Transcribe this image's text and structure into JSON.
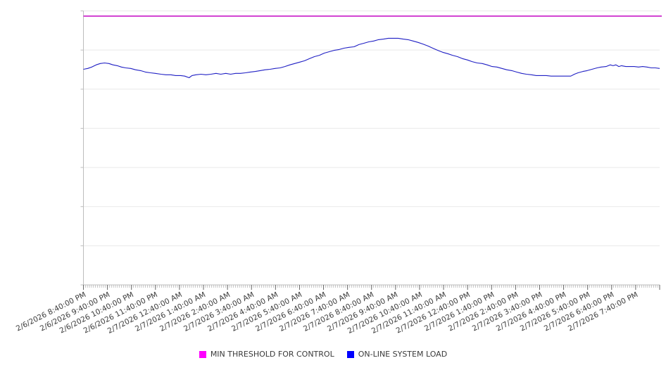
{
  "chart_data": {
    "type": "line",
    "title": "",
    "xlabel": "",
    "ylabel": "",
    "x_axis": {
      "range_hours": 24,
      "minor_tick_minutes": 5,
      "label_rotation_deg": -27,
      "categories": [
        "2/6/2026 8:40:00 PM",
        "2/6/2026 9:40:00 PM",
        "2/6/2026 10:40:00 PM",
        "2/6/2026 11:40:00 PM",
        "2/7/2026 12:40:00 AM",
        "2/7/2026 1:40:00 AM",
        "2/7/2026 2:40:00 AM",
        "2/7/2026 3:40:00 AM",
        "2/7/2026 4:40:00 AM",
        "2/7/2026 5:40:00 AM",
        "2/7/2026 6:40:00 AM",
        "2/7/2026 7:40:00 AM",
        "2/7/2026 8:40:00 AM",
        "2/7/2026 9:40:00 AM",
        "2/7/2026 10:40:00 AM",
        "2/7/2026 11:40:00 AM",
        "2/7/2026 12:40:00 PM",
        "2/7/2026 1:40:00 PM",
        "2/7/2026 2:40:00 PM",
        "2/7/2026 3:40:00 PM",
        "2/7/2026 4:40:00 PM",
        "2/7/2026 5:40:00 PM",
        "2/7/2026 6:40:00 PM",
        "2/7/2026 7:40:00 PM"
      ]
    },
    "y_axis": {
      "min": 0,
      "max": 100,
      "gridline_count": 8,
      "labels_visible": false,
      "grid_on": true
    },
    "legend_position": "bottom-center",
    "series": [
      {
        "name": "MIN THRESHOLD FOR CONTROL",
        "type": "hline",
        "color": "#cb29cb",
        "stroke_width": 1.7,
        "value": 98.1
      },
      {
        "name": "ON-LINE SYSTEM LOAD",
        "type": "line",
        "color": "#1f1fc4",
        "stroke_width": 1.1,
        "points": [
          [
            0,
            78.7
          ],
          [
            0.18,
            79
          ],
          [
            0.35,
            79.5
          ],
          [
            0.53,
            80.3
          ],
          [
            0.7,
            80.8
          ],
          [
            0.88,
            81
          ],
          [
            1.06,
            80.8
          ],
          [
            1.23,
            80.3
          ],
          [
            1.41,
            80
          ],
          [
            1.58,
            79.5
          ],
          [
            1.76,
            79.2
          ],
          [
            1.97,
            79
          ],
          [
            2.17,
            78.5
          ],
          [
            2.38,
            78.2
          ],
          [
            2.58,
            77.7
          ],
          [
            2.79,
            77.4
          ],
          [
            2.99,
            77.2
          ],
          [
            3.23,
            76.9
          ],
          [
            3.43,
            76.7
          ],
          [
            3.64,
            76.7
          ],
          [
            3.84,
            76.4
          ],
          [
            4.05,
            76.4
          ],
          [
            4.22,
            76.2
          ],
          [
            4.4,
            75.6
          ],
          [
            4.52,
            76.4
          ],
          [
            4.69,
            76.7
          ],
          [
            4.9,
            76.9
          ],
          [
            5.1,
            76.7
          ],
          [
            5.31,
            76.9
          ],
          [
            5.52,
            77.2
          ],
          [
            5.72,
            76.9
          ],
          [
            5.93,
            77.2
          ],
          [
            6.13,
            76.9
          ],
          [
            6.34,
            77.2
          ],
          [
            6.54,
            77.2
          ],
          [
            6.75,
            77.4
          ],
          [
            6.95,
            77.7
          ],
          [
            7.16,
            77.9
          ],
          [
            7.36,
            78.2
          ],
          [
            7.57,
            78.5
          ],
          [
            7.77,
            78.7
          ],
          [
            7.98,
            79
          ],
          [
            8.19,
            79.2
          ],
          [
            8.39,
            79.7
          ],
          [
            8.6,
            80.3
          ],
          [
            8.8,
            80.8
          ],
          [
            9.01,
            81.3
          ],
          [
            9.21,
            81.8
          ],
          [
            9.42,
            82.6
          ],
          [
            9.62,
            83.3
          ],
          [
            9.83,
            83.8
          ],
          [
            10.03,
            84.6
          ],
          [
            10.24,
            85.1
          ],
          [
            10.44,
            85.6
          ],
          [
            10.65,
            85.9
          ],
          [
            10.85,
            86.4
          ],
          [
            11.06,
            86.7
          ],
          [
            11.27,
            86.9
          ],
          [
            11.47,
            87.7
          ],
          [
            11.68,
            88.2
          ],
          [
            11.88,
            88.7
          ],
          [
            12.09,
            89
          ],
          [
            12.29,
            89.5
          ],
          [
            12.5,
            89.7
          ],
          [
            12.7,
            90
          ],
          [
            12.91,
            90
          ],
          [
            13.11,
            90
          ],
          [
            13.32,
            89.7
          ],
          [
            13.52,
            89.5
          ],
          [
            13.73,
            89
          ],
          [
            13.94,
            88.5
          ],
          [
            14.14,
            87.9
          ],
          [
            14.35,
            87.2
          ],
          [
            14.55,
            86.4
          ],
          [
            14.76,
            85.6
          ],
          [
            14.96,
            84.9
          ],
          [
            15.17,
            84.4
          ],
          [
            15.37,
            83.8
          ],
          [
            15.58,
            83.3
          ],
          [
            15.78,
            82.6
          ],
          [
            15.99,
            82.1
          ],
          [
            16.19,
            81.5
          ],
          [
            16.4,
            81
          ],
          [
            16.61,
            80.8
          ],
          [
            16.81,
            80.3
          ],
          [
            17.02,
            79.7
          ],
          [
            17.22,
            79.5
          ],
          [
            17.43,
            79
          ],
          [
            17.63,
            78.5
          ],
          [
            17.84,
            78.2
          ],
          [
            18.04,
            77.7
          ],
          [
            18.25,
            77.2
          ],
          [
            18.45,
            76.9
          ],
          [
            18.66,
            76.7
          ],
          [
            18.86,
            76.4
          ],
          [
            19.07,
            76.4
          ],
          [
            19.28,
            76.4
          ],
          [
            19.48,
            76.2
          ],
          [
            19.69,
            76.2
          ],
          [
            19.89,
            76.2
          ],
          [
            20.1,
            76.2
          ],
          [
            20.3,
            76.2
          ],
          [
            20.45,
            76.9
          ],
          [
            20.6,
            77.4
          ],
          [
            20.8,
            77.9
          ],
          [
            20.98,
            78.2
          ],
          [
            21.18,
            78.7
          ],
          [
            21.39,
            79.2
          ],
          [
            21.56,
            79.5
          ],
          [
            21.77,
            79.7
          ],
          [
            21.94,
            80.3
          ],
          [
            22.06,
            80
          ],
          [
            22.18,
            80.3
          ],
          [
            22.3,
            79.7
          ],
          [
            22.41,
            80
          ],
          [
            22.59,
            79.7
          ],
          [
            22.77,
            79.7
          ],
          [
            22.94,
            79.7
          ],
          [
            23.12,
            79.5
          ],
          [
            23.29,
            79.7
          ],
          [
            23.47,
            79.5
          ],
          [
            23.65,
            79.2
          ],
          [
            23.82,
            79.2
          ],
          [
            24,
            79
          ]
        ]
      }
    ]
  },
  "legend": {
    "items": [
      {
        "label": "MIN THRESHOLD FOR CONTROL",
        "color": "#ff00ff"
      },
      {
        "label": "ON-LINE SYSTEM LOAD",
        "color": "#0000ff"
      }
    ]
  },
  "colors": {
    "background": "#ffffff",
    "gridline": "#e9e9e9",
    "axis": "#bdbdbd",
    "minor_tick": "#b8b8b8",
    "major_tick": "#666666",
    "tick_label": "#3c3c3c"
  }
}
